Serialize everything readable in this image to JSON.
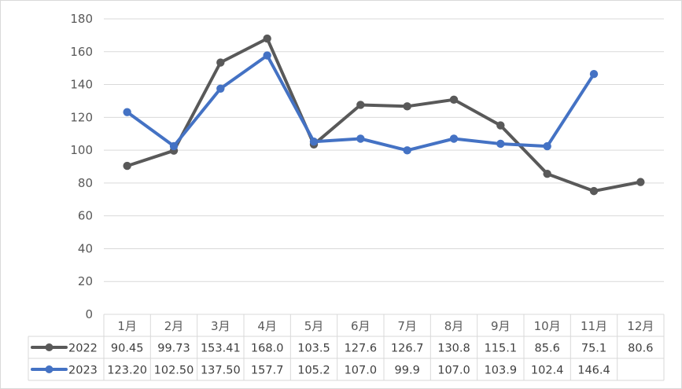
{
  "chart_data": {
    "type": "line",
    "categories": [
      "1月",
      "2月",
      "3月",
      "4月",
      "5月",
      "6月",
      "7月",
      "8月",
      "9月",
      "10月",
      "11月",
      "12月"
    ],
    "ylim": [
      0,
      180
    ],
    "yticks": [
      0,
      20,
      40,
      60,
      80,
      100,
      120,
      140,
      160,
      180
    ],
    "grid": true,
    "legend": "data-table",
    "series": [
      {
        "name": "2022",
        "color": "#595959",
        "values": [
          90.45,
          99.73,
          153.41,
          168.0,
          103.5,
          127.6,
          126.7,
          130.8,
          115.1,
          85.6,
          75.1,
          80.6
        ],
        "labels": [
          "90.45",
          "99.73",
          "153.41",
          "168.0",
          "103.5",
          "127.6",
          "126.7",
          "130.8",
          "115.1",
          "85.6",
          "75.1",
          "80.6"
        ]
      },
      {
        "name": "2023",
        "color": "#4472C4",
        "values": [
          123.2,
          102.5,
          137.5,
          157.7,
          105.2,
          107.0,
          99.9,
          107.0,
          103.9,
          102.4,
          146.4,
          null
        ],
        "labels": [
          "123.20",
          "102.50",
          "137.50",
          "157.7",
          "105.2",
          "107.0",
          "99.9",
          "107.0",
          "103.9",
          "102.4",
          "146.4",
          ""
        ]
      }
    ]
  }
}
